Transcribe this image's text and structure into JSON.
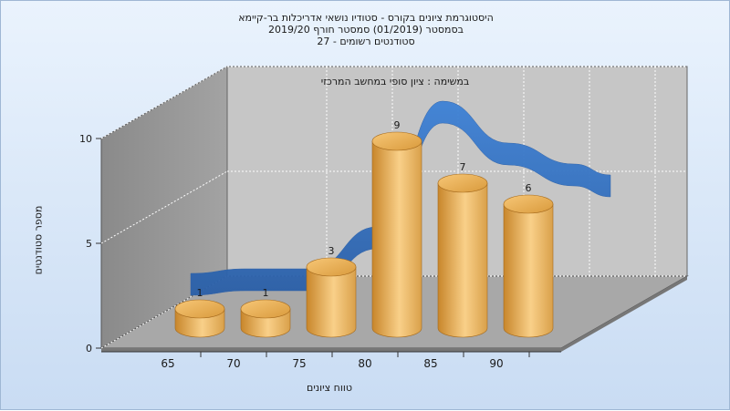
{
  "title_lines": [
    "היסטוגרמת ציונים בקורס - סטודיו נושאי אדריכלות בר-קיימא",
    "בסמסטר  (01/2019)  סמסטר חורף 2019/20",
    "סטודנטים רשומים - 27"
  ],
  "annotation": "במשימה : ציון סופי במחשב המרכזי",
  "chart_data": {
    "type": "bar",
    "categories": [
      "65",
      "70",
      "75",
      "80",
      "85",
      "90"
    ],
    "values": [
      1,
      1,
      3,
      9,
      7,
      6
    ],
    "data_labels": [
      "1",
      "1",
      "3",
      "9",
      "7",
      "6"
    ],
    "ylabel": "מספר סטודנטים",
    "xlabel": "טווח ציונים",
    "yticks": [
      "0",
      "5",
      "10"
    ],
    "ylim": [
      0,
      10
    ],
    "grid": true,
    "curve": [
      1,
      1,
      3,
      9,
      7,
      6
    ],
    "colors": {
      "bar_light": "#f9d089",
      "bar_dark": "#c8862b",
      "curve": "#3a75c4",
      "wall": "#8f8f8f",
      "back_wall": "#c7c7c7",
      "floor": "#a7a7a7"
    }
  }
}
